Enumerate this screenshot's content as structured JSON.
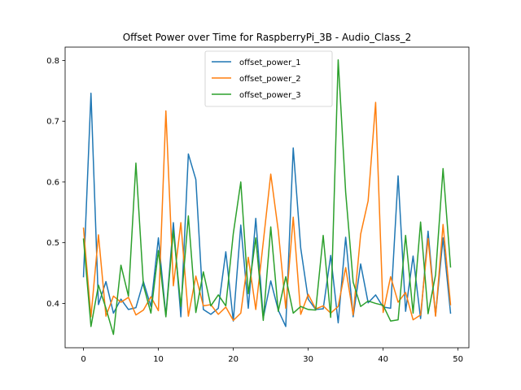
{
  "chart_data": {
    "type": "line",
    "title": "Offset Power over Time for RaspberryPi_3B - Audio_Class_2",
    "xlabel": "",
    "ylabel": "",
    "xlim": [
      -2.45,
      51.45
    ],
    "ylim": [
      0.327,
      0.822
    ],
    "xticks": [
      0,
      10,
      20,
      30,
      40,
      50
    ],
    "yticks": [
      0.4,
      0.5,
      0.6,
      0.7,
      0.8
    ],
    "xtick_labels": [
      "0",
      "10",
      "20",
      "30",
      "40",
      "50"
    ],
    "ytick_labels": [
      "0.4",
      "0.5",
      "0.6",
      "0.7",
      "0.8"
    ],
    "legend_position": "upper center",
    "grid": false,
    "x": [
      0,
      1,
      2,
      3,
      4,
      5,
      6,
      7,
      8,
      9,
      10,
      11,
      12,
      13,
      14,
      15,
      16,
      17,
      18,
      19,
      20,
      21,
      22,
      23,
      24,
      25,
      26,
      27,
      28,
      29,
      30,
      31,
      32,
      33,
      34,
      35,
      36,
      37,
      38,
      39,
      40,
      41,
      42,
      43,
      44,
      45,
      46,
      47,
      48,
      49
    ],
    "series": [
      {
        "name": "offset_power_1",
        "color": "#1f77b4",
        "values": [
          0.444,
          0.746,
          0.398,
          0.436,
          0.384,
          0.407,
          0.39,
          0.393,
          0.436,
          0.395,
          0.508,
          0.38,
          0.533,
          0.378,
          0.646,
          0.604,
          0.39,
          0.382,
          0.392,
          0.485,
          0.371,
          0.529,
          0.392,
          0.54,
          0.376,
          0.437,
          0.389,
          0.362,
          0.656,
          0.491,
          0.407,
          0.39,
          0.391,
          0.479,
          0.368,
          0.509,
          0.378,
          0.465,
          0.401,
          0.414,
          0.394,
          0.392,
          0.61,
          0.387,
          0.478,
          0.375,
          0.519,
          0.38,
          0.508,
          0.384
        ]
      },
      {
        "name": "offset_power_2",
        "color": "#ff7f0e",
        "values": [
          0.524,
          0.378,
          0.513,
          0.379,
          0.412,
          0.402,
          0.41,
          0.381,
          0.389,
          0.411,
          0.388,
          0.717,
          0.429,
          0.533,
          0.379,
          0.445,
          0.396,
          0.398,
          0.382,
          0.394,
          0.372,
          0.384,
          0.476,
          0.39,
          0.501,
          0.613,
          0.52,
          0.392,
          0.542,
          0.382,
          0.415,
          0.391,
          0.396,
          0.384,
          0.395,
          0.459,
          0.381,
          0.514,
          0.569,
          0.731,
          0.385,
          0.444,
          0.402,
          0.418,
          0.373,
          0.381,
          0.507,
          0.379,
          0.53,
          0.398
        ]
      },
      {
        "name": "offset_power_3",
        "color": "#2ca02c",
        "values": [
          0.506,
          0.362,
          0.43,
          0.392,
          0.349,
          0.463,
          0.412,
          0.631,
          0.43,
          0.384,
          0.487,
          0.378,
          0.52,
          0.395,
          0.544,
          0.385,
          0.452,
          0.396,
          0.414,
          0.396,
          0.515,
          0.6,
          0.416,
          0.508,
          0.372,
          0.526,
          0.387,
          0.444,
          0.384,
          0.395,
          0.39,
          0.389,
          0.512,
          0.377,
          0.801,
          0.583,
          0.435,
          0.395,
          0.404,
          0.4,
          0.397,
          0.371,
          0.373,
          0.512,
          0.384,
          0.534,
          0.383,
          0.447,
          0.622,
          0.46
        ]
      }
    ]
  }
}
